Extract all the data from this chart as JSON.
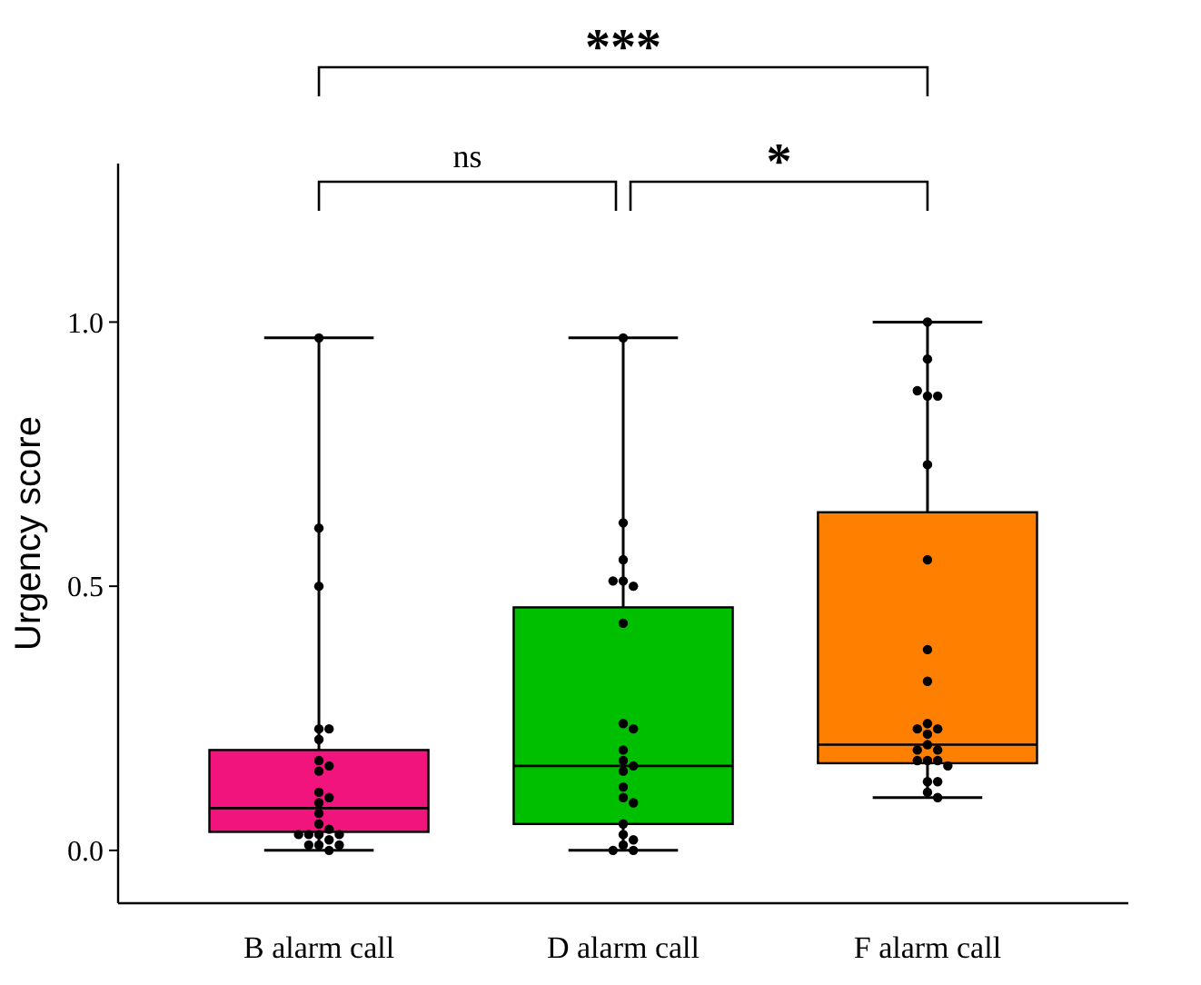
{
  "chart_data": {
    "type": "box",
    "ylabel": "Urgency score",
    "categories": [
      "B alarm call",
      "D alarm call",
      "F alarm call"
    ],
    "colors": [
      "#f0147c",
      "#00bf00",
      "#ff8000"
    ],
    "boxes": [
      {
        "low": 0,
        "q1": 0.035,
        "median": 0.08,
        "q3": 0.19,
        "high": 0.97
      },
      {
        "low": 0,
        "q1": 0.05,
        "median": 0.16,
        "q3": 0.46,
        "high": 0.97
      },
      {
        "low": 0.1,
        "q1": 0.165,
        "median": 0.2,
        "q3": 0.64,
        "high": 1.0
      }
    ],
    "series": [
      {
        "type": "scatter",
        "color": "#000000",
        "x": [
          "B alarm call",
          "B alarm call",
          "B alarm call",
          "B alarm call",
          "B alarm call",
          "B alarm call",
          "B alarm call",
          "B alarm call",
          "B alarm call",
          "B alarm call",
          "B alarm call",
          "B alarm call",
          "B alarm call",
          "B alarm call",
          "B alarm call",
          "B alarm call",
          "B alarm call",
          "B alarm call",
          "B alarm call",
          "B alarm call",
          "B alarm call",
          "B alarm call",
          "B alarm call",
          "B alarm call"
        ],
        "values": [
          0.97,
          0.61,
          0.5,
          0.23,
          0.23,
          0.21,
          0.17,
          0.16,
          0.15,
          0.11,
          0.1,
          0.09,
          0.07,
          0.05,
          0.04,
          0.03,
          0.03,
          0.03,
          0.03,
          0.02,
          0.01,
          0.01,
          0.01,
          0.0
        ]
      },
      {
        "type": "scatter",
        "color": "#000000",
        "x": [
          "D alarm call",
          "D alarm call",
          "D alarm call",
          "D alarm call",
          "D alarm call",
          "D alarm call",
          "D alarm call",
          "D alarm call",
          "D alarm call",
          "D alarm call",
          "D alarm call",
          "D alarm call",
          "D alarm call",
          "D alarm call",
          "D alarm call",
          "D alarm call",
          "D alarm call",
          "D alarm call",
          "D alarm call",
          "D alarm call",
          "D alarm call",
          "D alarm call"
        ],
        "values": [
          0.97,
          0.62,
          0.55,
          0.51,
          0.5,
          0.51,
          0.43,
          0.24,
          0.23,
          0.19,
          0.17,
          0.16,
          0.15,
          0.12,
          0.1,
          0.09,
          0.05,
          0.03,
          0.02,
          0.01,
          0.0,
          0.0
        ]
      },
      {
        "type": "scatter",
        "color": "#000000",
        "x": [
          "F alarm call",
          "F alarm call",
          "F alarm call",
          "F alarm call",
          "F alarm call",
          "F alarm call",
          "F alarm call",
          "F alarm call",
          "F alarm call",
          "F alarm call",
          "F alarm call",
          "F alarm call",
          "F alarm call",
          "F alarm call",
          "F alarm call",
          "F alarm call",
          "F alarm call",
          "F alarm call",
          "F alarm call",
          "F alarm call",
          "F alarm call",
          "F alarm call",
          "F alarm call",
          "F alarm call"
        ],
        "values": [
          1.0,
          0.93,
          0.86,
          0.86,
          0.87,
          0.73,
          0.55,
          0.38,
          0.32,
          0.24,
          0.23,
          0.23,
          0.22,
          0.2,
          0.19,
          0.19,
          0.17,
          0.17,
          0.17,
          0.16,
          0.13,
          0.13,
          0.11,
          0.1
        ]
      }
    ],
    "ylim": [
      -0.1,
      1.3
    ],
    "yticks": [
      {
        "value": 0,
        "label": "0.0"
      },
      {
        "value": 0.5,
        "label": "0.5"
      },
      {
        "value": 1,
        "label": "1.0"
      }
    ],
    "grid": false,
    "marker": "circle",
    "annotations": [
      "ns",
      "*",
      "***"
    ]
  }
}
